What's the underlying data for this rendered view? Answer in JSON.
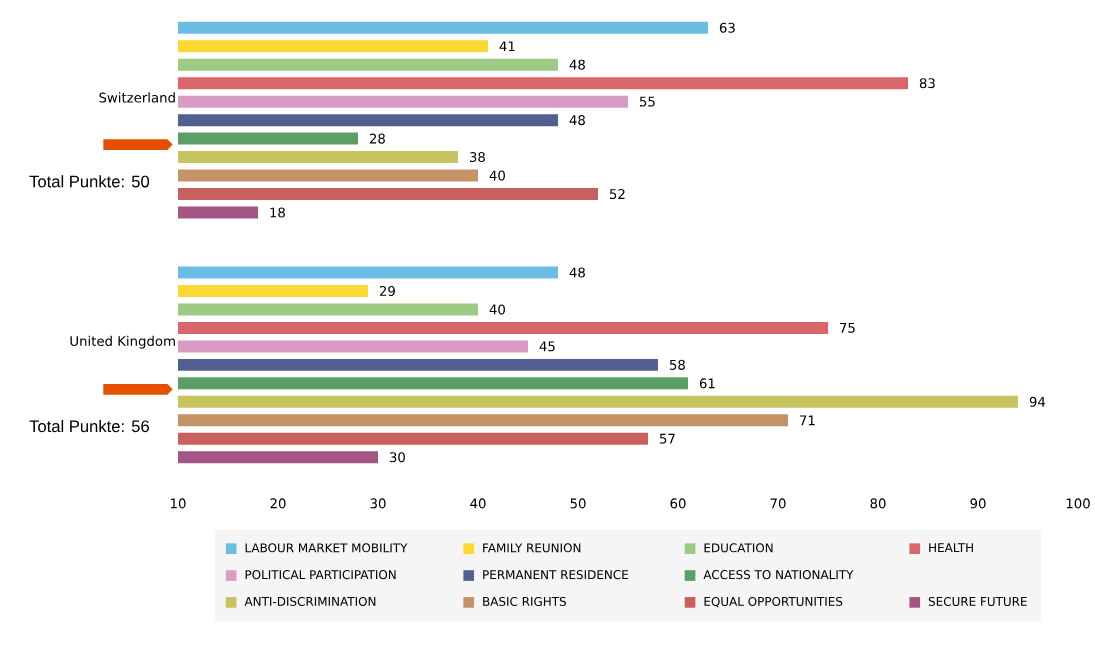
{
  "chart_data": {
    "type": "bar",
    "orientation": "horizontal",
    "categories": [
      "Switzerland",
      "United Kingdom"
    ],
    "series": [
      {
        "name": "LABOUR MARKET MOBILITY",
        "color": "#6bbde3",
        "values": [
          63,
          48
        ]
      },
      {
        "name": "FAMILY REUNION",
        "color": "#fcd932",
        "values": [
          41,
          29
        ]
      },
      {
        "name": "EDUCATION",
        "color": "#9dcb84",
        "values": [
          48,
          40
        ]
      },
      {
        "name": "HEALTH",
        "color": "#d9666a",
        "values": [
          83,
          75
        ]
      },
      {
        "name": "POLITICAL PARTICIPATION",
        "color": "#d89cc3",
        "values": [
          55,
          45
        ]
      },
      {
        "name": "PERMANENT RESIDENCE",
        "color": "#535e92",
        "values": [
          48,
          58
        ]
      },
      {
        "name": "ACCESS TO NATIONALITY",
        "color": "#5c9e67",
        "values": [
          28,
          61
        ]
      },
      {
        "name": "ANTI-DISCRIMINATION",
        "color": "#c6c45e",
        "values": [
          38,
          94
        ]
      },
      {
        "name": "BASIC RIGHTS",
        "color": "#c59167",
        "values": [
          40,
          71
        ]
      },
      {
        "name": "EQUAL OPPORTUNITIES",
        "color": "#c9605e",
        "values": [
          52,
          57
        ]
      },
      {
        "name": "SECURE FUTURE",
        "color": "#a35583",
        "values": [
          18,
          30
        ]
      }
    ],
    "xlim": [
      10,
      100
    ],
    "xticks": [
      10,
      20,
      30,
      40,
      50,
      60,
      70,
      80,
      90,
      100
    ],
    "data_labels": true,
    "legend": "bottom",
    "annotations": [
      "Total Punkte: 50",
      "Total Punkte: 56"
    ]
  }
}
